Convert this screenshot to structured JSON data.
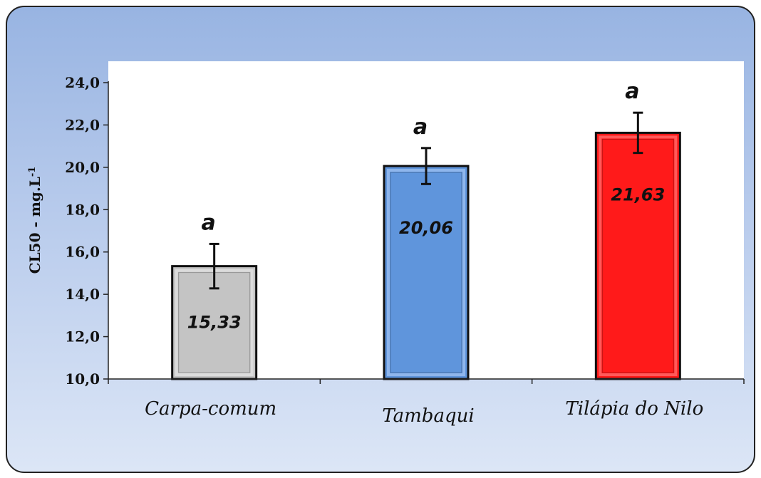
{
  "chart_data": {
    "type": "bar",
    "categories": [
      "Carpa-comum",
      "Tambaqui",
      "Tilápia do Nilo"
    ],
    "values": [
      15.33,
      20.06,
      21.63
    ],
    "value_labels": [
      "15,33",
      "20,06",
      "21,63"
    ],
    "error": [
      1.05,
      0.85,
      0.95
    ],
    "significance": [
      "a",
      "a",
      "a"
    ],
    "ylabel": "CL50 - mg.L",
    "ylabel_superscript": "-1",
    "ylim": [
      10,
      24
    ],
    "yticks": [
      10,
      12,
      14,
      16,
      18,
      20,
      22,
      24
    ],
    "ytick_labels": [
      "10,0",
      "12,0",
      "14,0",
      "16,0",
      "18,0",
      "20,0",
      "22,0",
      "24,0"
    ],
    "grid": false,
    "colors": [
      "#c4c4c4",
      "#5f95dc",
      "#ff1a1a"
    ],
    "bevel_colors": [
      "#dcdcdc",
      "#8fb6ec",
      "#ff5a5a"
    ]
  }
}
